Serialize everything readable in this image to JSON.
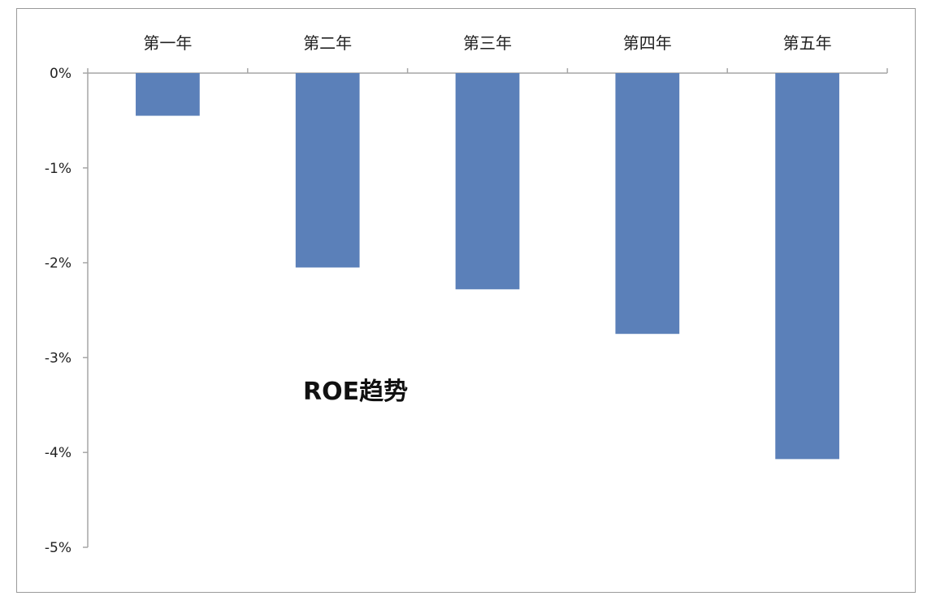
{
  "chart_data": {
    "type": "bar",
    "title": "ROE趋势",
    "categories": [
      "第一年",
      "第二年",
      "第三年",
      "第四年",
      "第五年"
    ],
    "values": [
      -0.45,
      -2.05,
      -2.28,
      -2.75,
      -4.07
    ],
    "value_unit": "%",
    "y_ticks": [
      "0%",
      "-1%",
      "-2%",
      "-3%",
      "-4%",
      "-5%"
    ],
    "y_tick_values": [
      0,
      -1,
      -2,
      -3,
      -4,
      -5
    ],
    "ylim": [
      -5,
      0
    ],
    "xlabel": "",
    "ylabel": "",
    "x_axis_position": "top",
    "grid": false,
    "legend": "none",
    "bar_color": "#5b80b9",
    "axis_color": "#a6a6a6"
  }
}
